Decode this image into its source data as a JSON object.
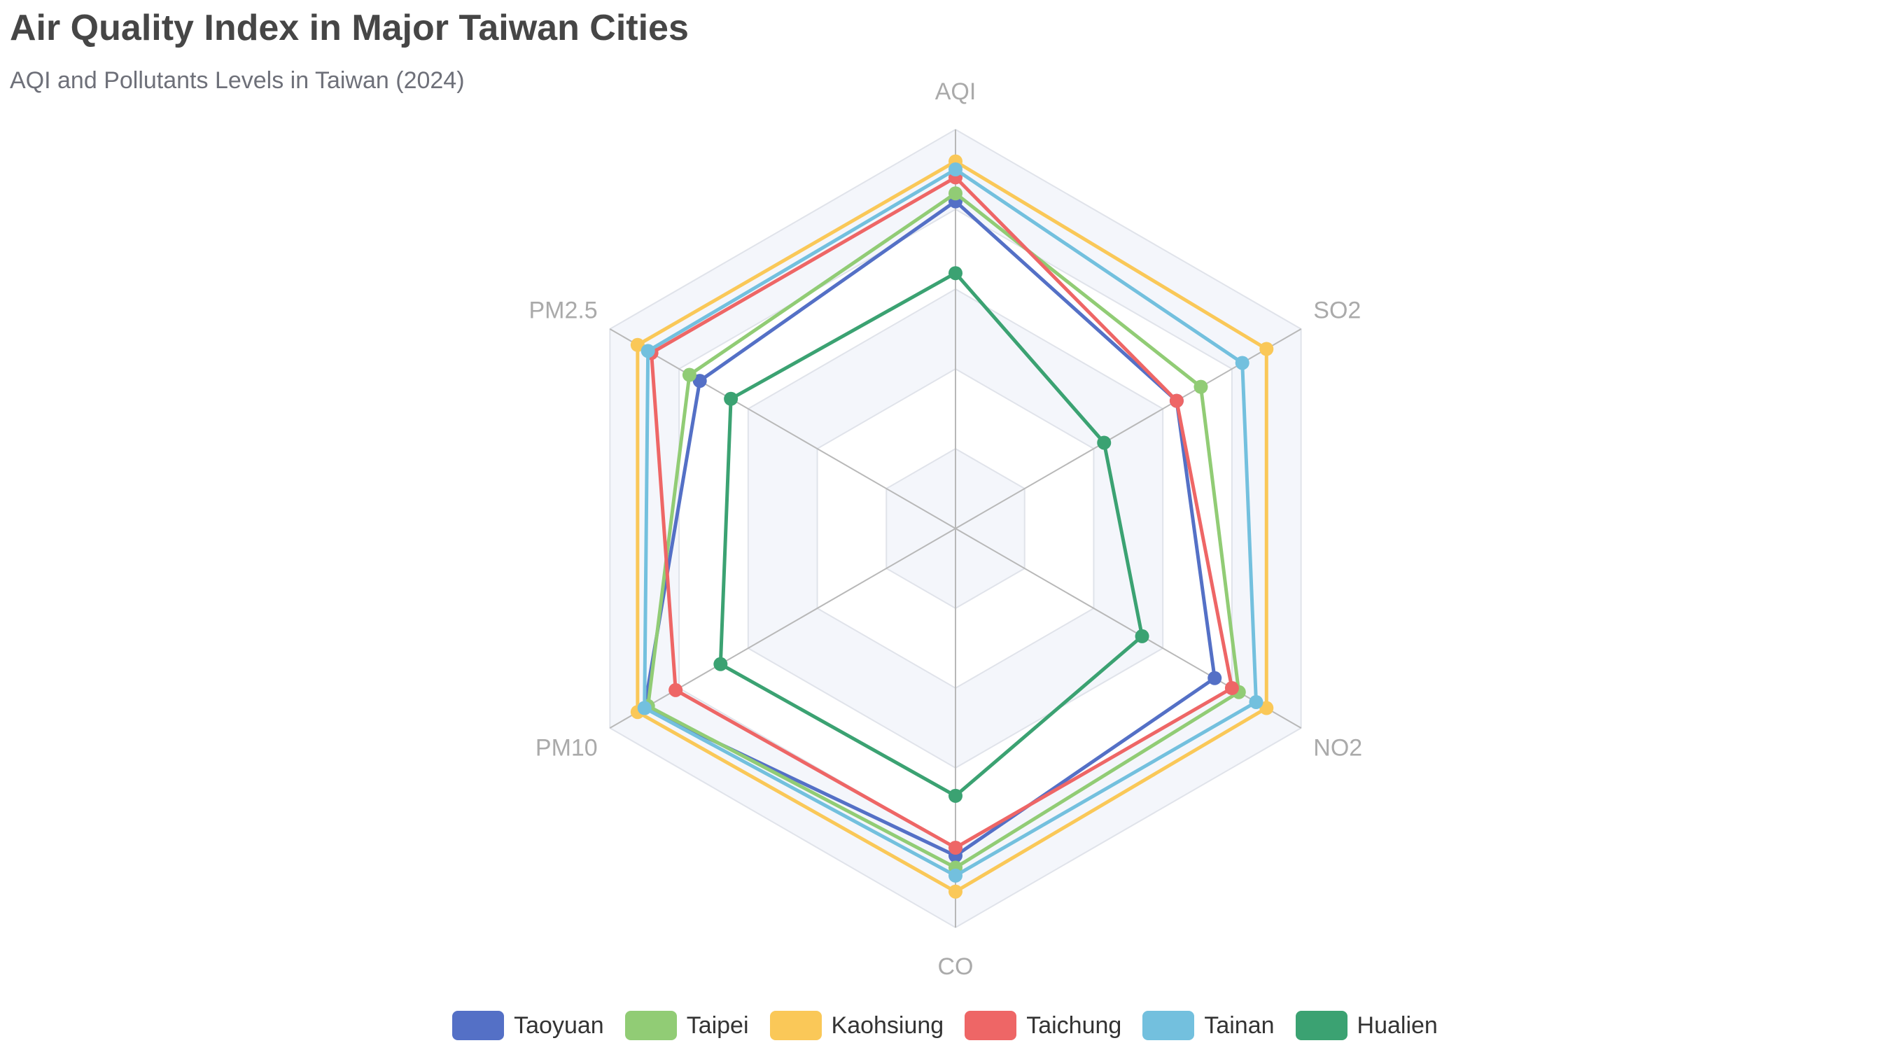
{
  "chart_data": {
    "type": "radar",
    "title": "Air Quality Index in Major Taiwan Cities",
    "subtitle": "AQI and Pollutants Levels in Taiwan (2024)",
    "indicators": [
      "AQI",
      "SO2",
      "NO2",
      "CO",
      "PM10",
      "PM2.5"
    ],
    "max": 100,
    "split_number": 5,
    "legend_position": "bottom",
    "series": [
      {
        "name": "Taoyuan",
        "color": "#5470c6",
        "values": [
          82,
          64,
          75,
          82,
          90,
          74
        ]
      },
      {
        "name": "Taipei",
        "color": "#91cc75",
        "values": [
          84,
          71,
          82,
          85,
          89,
          77
        ]
      },
      {
        "name": "Kaohsiung",
        "color": "#fac858",
        "values": [
          92,
          90,
          90,
          91,
          92,
          92
        ]
      },
      {
        "name": "Taichung",
        "color": "#ee6666",
        "values": [
          88,
          64,
          80,
          80,
          81,
          88
        ]
      },
      {
        "name": "Tainan",
        "color": "#73c0de",
        "values": [
          90,
          83,
          87,
          87,
          90,
          89
        ]
      },
      {
        "name": "Hualien",
        "color": "#3ba272",
        "values": [
          64,
          43,
          54,
          67,
          68,
          65
        ]
      }
    ]
  }
}
